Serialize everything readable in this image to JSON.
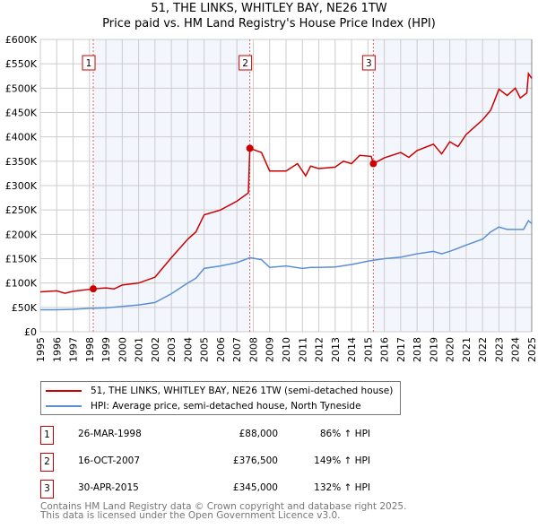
{
  "title_line1": "51, THE LINKS, WHITLEY BAY, NE26 1TW",
  "title_line2": "Price paid vs. HM Land Registry's House Price Index (HPI)",
  "chart_data": {
    "type": "line",
    "xlim": [
      1995,
      2025
    ],
    "ylim": [
      0,
      600000
    ],
    "x_ticks": [
      "1995",
      "1996",
      "1997",
      "1998",
      "1999",
      "2000",
      "2001",
      "2002",
      "2003",
      "2004",
      "2005",
      "2006",
      "2007",
      "2008",
      "2009",
      "2010",
      "2011",
      "2012",
      "2013",
      "2014",
      "2015",
      "2016",
      "2017",
      "2018",
      "2019",
      "2020",
      "2021",
      "2022",
      "2023",
      "2024",
      "2025"
    ],
    "y_ticks": [
      {
        "v": 0,
        "label": "£0"
      },
      {
        "v": 50000,
        "label": "£50K"
      },
      {
        "v": 100000,
        "label": "£100K"
      },
      {
        "v": 150000,
        "label": "£150K"
      },
      {
        "v": 200000,
        "label": "£200K"
      },
      {
        "v": 250000,
        "label": "£250K"
      },
      {
        "v": 300000,
        "label": "£300K"
      },
      {
        "v": 350000,
        "label": "£350K"
      },
      {
        "v": 400000,
        "label": "£400K"
      },
      {
        "v": 450000,
        "label": "£450K"
      },
      {
        "v": 500000,
        "label": "£500K"
      },
      {
        "v": 550000,
        "label": "£550K"
      },
      {
        "v": 600000,
        "label": "£600K"
      }
    ],
    "grid": true,
    "series": [
      {
        "name": "51, THE LINKS, WHITLEY BAY, NE26 1TW (semi-detached house)",
        "color": "#cc0000",
        "x": [
          1995,
          1996,
          1996.5,
          1997,
          1998.23,
          1999,
          1999.5,
          2000,
          2001,
          2002,
          2003,
          2004,
          2004.5,
          2005,
          2006,
          2007,
          2007.7,
          2007.79,
          2008.5,
          2009,
          2010,
          2010.7,
          2011.2,
          2011.5,
          2012,
          2013,
          2013.5,
          2014,
          2014.5,
          2015.2,
          2015.33,
          2016,
          2017,
          2017.5,
          2018,
          2019,
          2019.5,
          2020,
          2020.5,
          2021,
          2021.5,
          2022,
          2022.5,
          2023,
          2023.5,
          2024,
          2024.3,
          2024.7,
          2024.8,
          2025
        ],
        "y": [
          82000,
          84000,
          79000,
          83000,
          88000,
          90000,
          88000,
          96000,
          100000,
          112000,
          152000,
          190000,
          205000,
          240000,
          250000,
          268000,
          285000,
          376500,
          368000,
          330000,
          330000,
          345000,
          320000,
          340000,
          335000,
          338000,
          350000,
          345000,
          362000,
          360000,
          345000,
          357000,
          368000,
          358000,
          372000,
          385000,
          365000,
          390000,
          380000,
          405000,
          420000,
          435000,
          455000,
          498000,
          485000,
          500000,
          480000,
          490000,
          530000,
          520000
        ]
      },
      {
        "name": "HPI: Average price, semi-detached house, North Tyneside",
        "color": "#5b8fd4",
        "x": [
          1995,
          1996,
          1997,
          1998,
          1999,
          2000,
          2001,
          2002,
          2003,
          2004,
          2004.5,
          2005,
          2006,
          2007,
          2007.8,
          2008.5,
          2009,
          2010,
          2011,
          2011.5,
          2012,
          2013,
          2014,
          2015,
          2016,
          2017,
          2018,
          2019,
          2019.5,
          2020,
          2021,
          2022,
          2022.5,
          2023,
          2023.5,
          2024,
          2024.5,
          2024.8,
          2025
        ],
        "y": [
          45000,
          45000,
          46000,
          48000,
          49000,
          52000,
          55000,
          60000,
          78000,
          100000,
          110000,
          130000,
          135000,
          142000,
          152000,
          148000,
          132000,
          135000,
          130000,
          132000,
          132000,
          133000,
          138000,
          145000,
          150000,
          153000,
          160000,
          165000,
          160000,
          165000,
          178000,
          190000,
          205000,
          215000,
          210000,
          210000,
          210000,
          228000,
          222000
        ]
      }
    ],
    "sales": [
      {
        "id": "1",
        "x": 1998.23,
        "y": 88000,
        "date": "26-MAR-1998",
        "price": "£88,000",
        "hpi": "86% ↑ HPI"
      },
      {
        "id": "2",
        "x": 2007.79,
        "y": 376500,
        "date": "16-OCT-2007",
        "price": "£376,500",
        "hpi": "149% ↑ HPI"
      },
      {
        "id": "3",
        "x": 2015.33,
        "y": 345000,
        "date": "30-APR-2015",
        "price": "£345,000",
        "hpi": "132% ↑ HPI"
      }
    ],
    "legend_position": "below"
  },
  "footer_line1": "Contains HM Land Registry data © Crown copyright and database right 2025.",
  "footer_line2": "This data is licensed under the Open Government Licence v3.0."
}
